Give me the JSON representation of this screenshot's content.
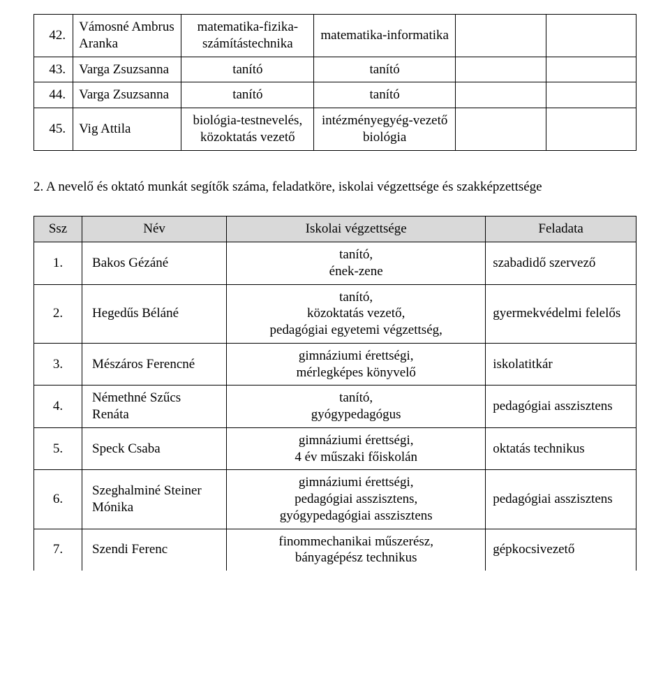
{
  "table1_rows": [
    {
      "num": "42.",
      "name": "Vámosné Ambrus Aranka",
      "col2": "matematika-fizika-számítástechnika",
      "col3": "matematika-informatika",
      "col4": "",
      "col5": ""
    },
    {
      "num": "43.",
      "name": "Varga Zsuzsanna",
      "col2": "tanító",
      "col3": "tanító",
      "col4": "",
      "col5": ""
    },
    {
      "num": "44.",
      "name": "Varga Zsuzsanna",
      "col2": "tanító",
      "col3": "tanító",
      "col4": "",
      "col5": ""
    },
    {
      "num": "45.",
      "name": "Vig Attila",
      "col2": "biológia-testnevelés, közoktatás vezető",
      "col3": "intézményegyég-vezető biológia",
      "col4": "",
      "col5": ""
    }
  ],
  "section_heading": "2. A nevelő és oktató munkát segítők száma, feladatköre, iskolai végzettsége és szakképzettsége",
  "table2_headers": {
    "ssz": "Ssz",
    "nev": "Név",
    "iskolai": "Iskolai végzettsége",
    "feladata": "Feladata"
  },
  "table2_rows": [
    {
      "num": "1.",
      "name": "Bakos Gézáné",
      "iskolai": "tanító,\nének-zene",
      "feladata": "szabadidő szervező"
    },
    {
      "num": "2.",
      "name": "Hegedűs Béláné",
      "iskolai": "tanító,\nközoktatás vezető,\npedagógiai egyetemi végzettség,",
      "feladata": "gyermekvédelmi felelős"
    },
    {
      "num": "3.",
      "name": "Mészáros Ferencné",
      "iskolai": "gimnáziumi érettségi,\nmérlegképes könyvelő",
      "feladata": "iskolatitkár"
    },
    {
      "num": "4.",
      "name": "Némethné Szűcs Renáta",
      "iskolai": "tanító,\ngyógypedagógus",
      "feladata": "pedagógiai asszisztens"
    },
    {
      "num": "5.",
      "name": "Speck Csaba",
      "iskolai": "gimnáziumi érettségi,\n4 év műszaki főiskolán",
      "feladata": "oktatás technikus"
    },
    {
      "num": "6.",
      "name": "Szeghalminé Steiner Mónika",
      "iskolai": "gimnáziumi érettségi,\npedagógiai asszisztens,\ngyógypedagógiai asszisztens",
      "feladata": "pedagógiai asszisztens"
    },
    {
      "num": "7.",
      "name": "Szendi Ferenc",
      "iskolai": "finommechanikai műszerész,\nbányagépész technikus",
      "feladata": "gépkocsivezető"
    }
  ]
}
